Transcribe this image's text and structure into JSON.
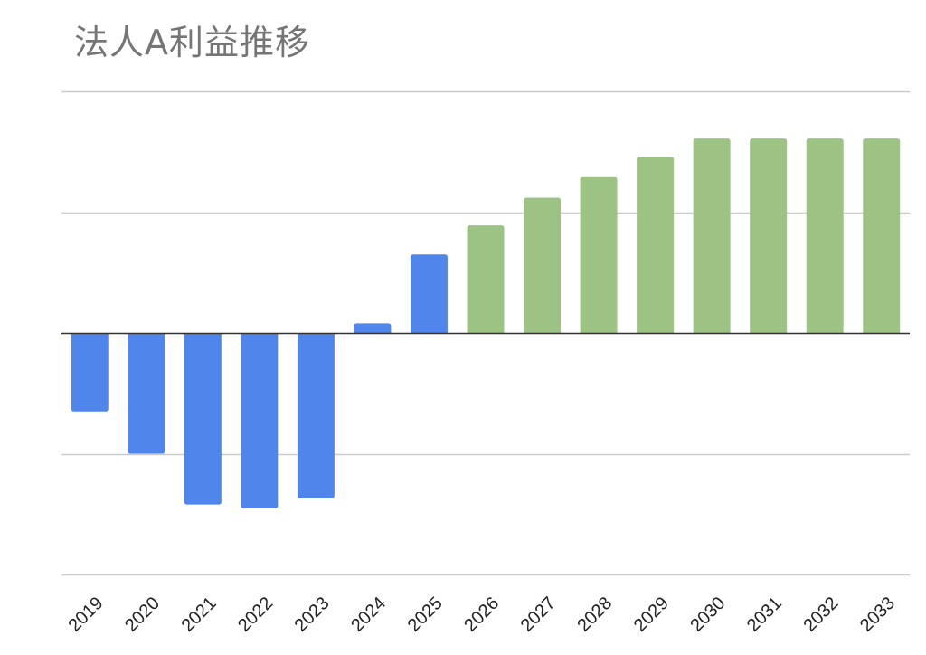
{
  "chart_data": {
    "type": "bar",
    "title": "法人A利益推移",
    "xlabel": "",
    "ylabel": "",
    "categories": [
      "2019",
      "2020",
      "2021",
      "2022",
      "2023",
      "2024",
      "2025",
      "2026",
      "2027",
      "2028",
      "2029",
      "2030",
      "2031",
      "2032",
      "2033"
    ],
    "values": [
      -0.65,
      -1.0,
      -1.42,
      -1.45,
      -1.37,
      0.08,
      0.65,
      0.89,
      1.12,
      1.29,
      1.46,
      1.61,
      1.61,
      1.61,
      1.61
    ],
    "bar_colors": [
      "#5085EC",
      "#5085EC",
      "#5085EC",
      "#5085EC",
      "#5085EC",
      "#5085EC",
      "#5085EC",
      "#9DC384",
      "#9DC384",
      "#9DC384",
      "#9DC384",
      "#9DC384",
      "#9DC384",
      "#9DC384",
      "#9DC384"
    ],
    "ylim": [
      -2,
      2
    ],
    "yticks": [
      -2,
      -1,
      0,
      1,
      2
    ],
    "grid": true,
    "gridline_color": "#cccccc",
    "zero_line_color": "#333333",
    "legend": "none"
  }
}
